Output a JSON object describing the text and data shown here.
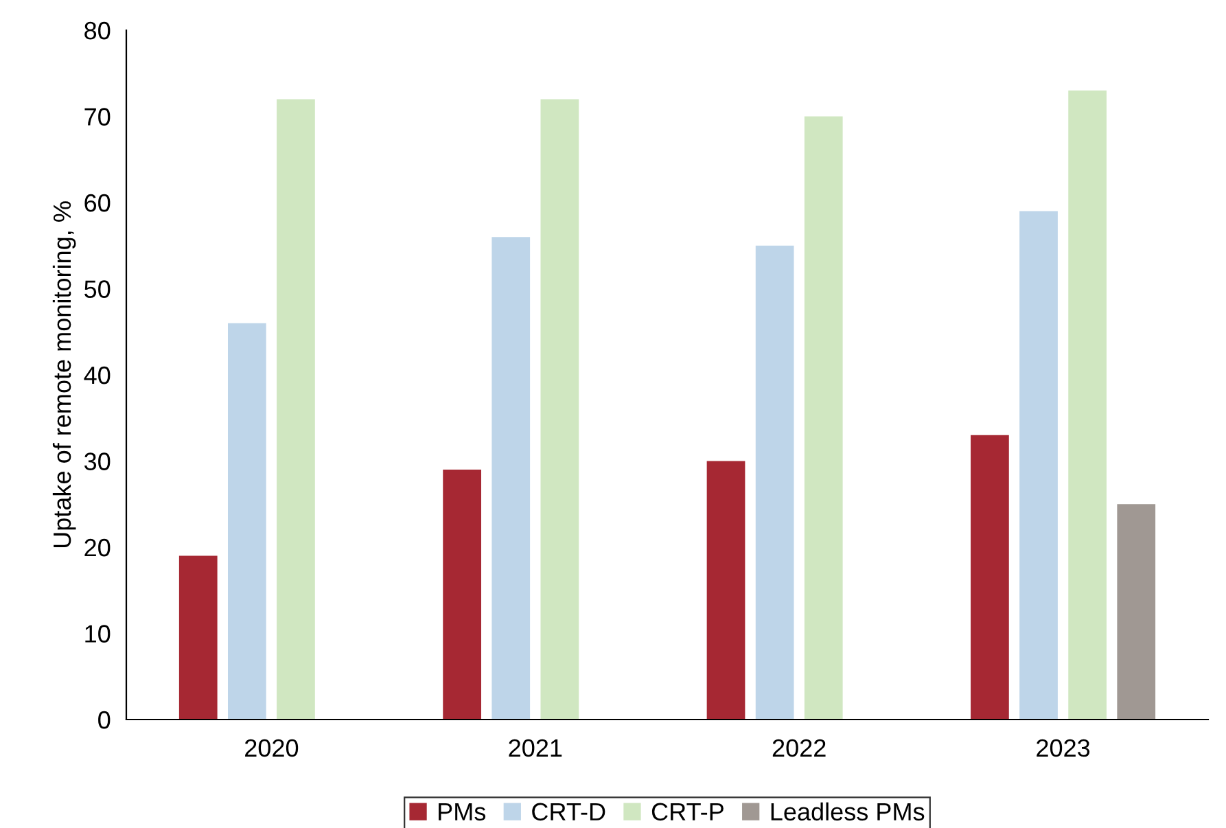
{
  "chart_data": {
    "type": "bar",
    "ylabel": "Uptake of remote monitoring, %",
    "categories": [
      "2020",
      "2021",
      "2022",
      "2023"
    ],
    "series": [
      {
        "name": "PMs",
        "color": "#a62833",
        "values": [
          19,
          29,
          30,
          33
        ]
      },
      {
        "name": "CRT-D",
        "color": "#bed5e9",
        "values": [
          46,
          56,
          55,
          59
        ]
      },
      {
        "name": "CRT-P",
        "color": "#d0e7c1",
        "values": [
          72,
          72,
          70,
          73
        ]
      },
      {
        "name": "Leadless PMs",
        "color": "#a09893",
        "values": [
          null,
          null,
          null,
          25
        ]
      }
    ],
    "ylim": [
      0,
      80
    ],
    "yticks": [
      0,
      10,
      20,
      30,
      40,
      50,
      60,
      70,
      80
    ],
    "grid": false,
    "legend": "bottom"
  }
}
